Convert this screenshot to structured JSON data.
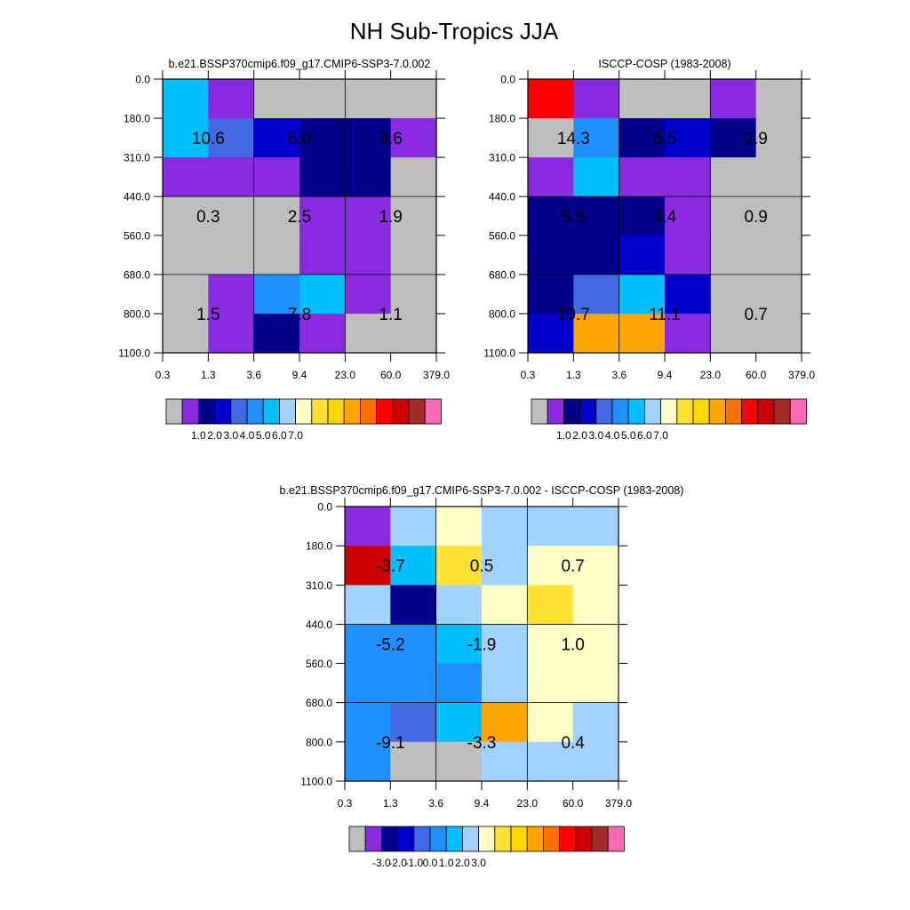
{
  "page": {
    "title": "NH Sub-Tropics JJA"
  },
  "palettes": {
    "abs": [
      "#bebebe",
      "#8a2be2",
      "#00008b",
      "#0000cd",
      "#4169e1",
      "#1e90ff",
      "#00bfff",
      "#a2d2ff",
      "#ffffc8",
      "#ffe135",
      "#ffd700",
      "#ffa500",
      "#ff7000",
      "#ff0000",
      "#cd0000",
      "#a52a2a",
      "#ff69b4"
    ],
    "diff": [
      "#bebebe",
      "#8a2be2",
      "#00008b",
      "#0000cd",
      "#4169e1",
      "#1e90ff",
      "#00bfff",
      "#a2d2ff",
      "#ffffc8",
      "#ffe135",
      "#ffd700",
      "#ffa500",
      "#ff7000",
      "#ff0000",
      "#cd0000",
      "#a52a2a",
      "#ff69b4"
    ]
  },
  "chart_data": [
    {
      "type": "heatmap",
      "title": "b.e21.BSSP370cmip6.f09_g17.CMIP6-SSP3-7.0.002",
      "x_tick_labels": [
        "0.3",
        "1.3",
        "3.6",
        "9.4",
        "23.0",
        "60.0",
        "379.0"
      ],
      "y_tick_labels": [
        "0.0",
        "180.0",
        "310.0",
        "440.0",
        "560.0",
        "680.0",
        "800.0",
        "1100.0"
      ],
      "palette": "abs",
      "cells": [
        [
          6,
          1,
          0,
          0,
          0,
          0
        ],
        [
          6,
          4,
          3,
          2,
          2,
          1
        ],
        [
          1,
          1,
          1,
          2,
          2,
          0
        ],
        [
          0,
          0,
          0,
          1,
          1,
          0
        ],
        [
          0,
          0,
          0,
          1,
          1,
          0
        ],
        [
          0,
          1,
          5,
          6,
          1,
          0
        ],
        [
          0,
          1,
          2,
          1,
          0,
          0
        ]
      ],
      "block_values": [
        [
          "10.6",
          "6.0",
          "3.6"
        ],
        [
          "0.3",
          "2.5",
          "1.9"
        ],
        [
          "1.5",
          "7.8",
          "1.1"
        ]
      ],
      "colorbar_labels": [
        "1.0",
        "2.0",
        "3.0",
        "4.0",
        "5.0",
        "6.0",
        "7.0"
      ]
    },
    {
      "type": "heatmap",
      "title": "ISCCP-COSP (1983-2008)",
      "x_tick_labels": [
        "0.3",
        "1.3",
        "3.6",
        "9.4",
        "23.0",
        "60.0",
        "379.0"
      ],
      "y_tick_labels": [
        "0.0",
        "180.0",
        "310.0",
        "440.0",
        "560.0",
        "680.0",
        "800.0",
        "1100.0"
      ],
      "palette": "abs",
      "cells": [
        [
          13,
          1,
          0,
          0,
          1,
          0
        ],
        [
          0,
          5,
          2,
          3,
          2,
          0
        ],
        [
          1,
          6,
          1,
          1,
          0,
          0
        ],
        [
          2,
          2,
          2,
          1,
          0,
          0
        ],
        [
          2,
          2,
          3,
          1,
          0,
          0
        ],
        [
          2,
          4,
          6,
          3,
          0,
          0
        ],
        [
          3,
          11,
          11,
          1,
          0,
          0
        ]
      ],
      "block_values": [
        [
          "14.3",
          "5.5",
          "2.9"
        ],
        [
          "5.5",
          "4.4",
          "0.9"
        ],
        [
          "10.7",
          "11.1",
          "0.7"
        ]
      ],
      "colorbar_labels": [
        "1.0",
        "2.0",
        "3.0",
        "4.0",
        "5.0",
        "6.0",
        "7.0"
      ]
    },
    {
      "type": "heatmap",
      "title": "b.e21.BSSP370cmip6.f09_g17.CMIP6-SSP3-7.0.002 - ISCCP-COSP (1983-2008)",
      "x_tick_labels": [
        "0.3",
        "1.3",
        "3.6",
        "9.4",
        "23.0",
        "60.0",
        "379.0"
      ],
      "y_tick_labels": [
        "0.0",
        "180.0",
        "310.0",
        "440.0",
        "560.0",
        "680.0",
        "800.0",
        "1100.0"
      ],
      "palette": "diff",
      "cells": [
        [
          1,
          7,
          8,
          7,
          7,
          7
        ],
        [
          14,
          6,
          9,
          7,
          8,
          8
        ],
        [
          7,
          2,
          7,
          8,
          9,
          8
        ],
        [
          5,
          5,
          6,
          7,
          8,
          8
        ],
        [
          5,
          5,
          5,
          7,
          8,
          8
        ],
        [
          5,
          4,
          6,
          11,
          8,
          7
        ],
        [
          5,
          0,
          0,
          7,
          7,
          7
        ]
      ],
      "block_values": [
        [
          "-3.7",
          "0.5",
          "0.7"
        ],
        [
          "-5.2",
          "-1.9",
          "1.0"
        ],
        [
          "-9.1",
          "-3.3",
          "0.4"
        ]
      ],
      "colorbar_labels": [
        "-3.0",
        "-2.0",
        "-1.0",
        "0.0",
        "1.0",
        "2.0",
        "3.0"
      ]
    }
  ]
}
